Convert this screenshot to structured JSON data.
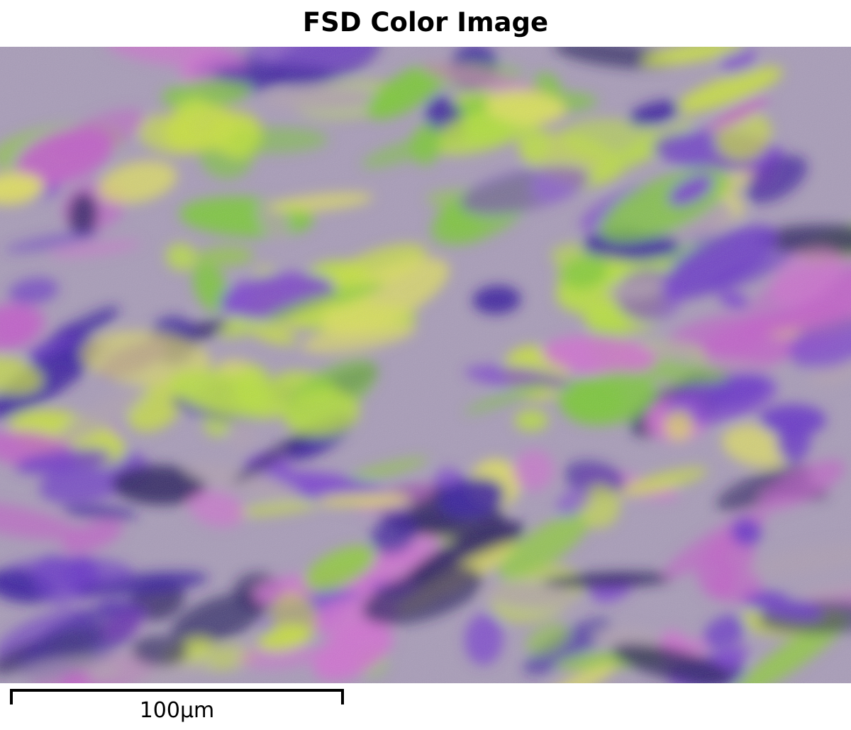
{
  "title": "FSD Color Image",
  "scale_bar": {
    "label": "100µm",
    "value": 100,
    "unit": "µm"
  },
  "image": {
    "kind": "FSD orientation-contrast color micrograph",
    "dominant_colors": [
      "#7a3fd0",
      "#c8e040",
      "#3a1fa0",
      "#d070d0",
      "#8fce3a",
      "#b0a0b0",
      "#e0e060",
      "#2a2060"
    ]
  }
}
